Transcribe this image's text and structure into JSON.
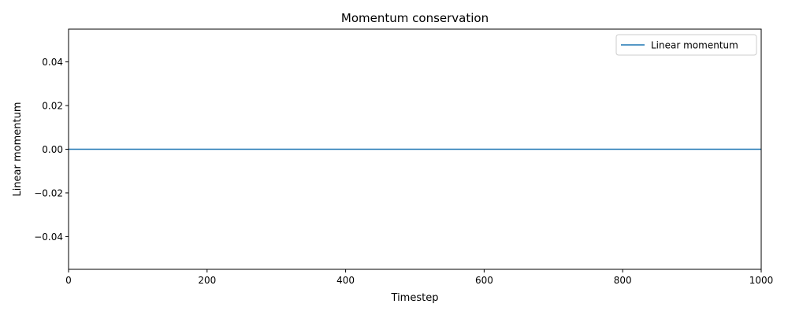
{
  "chart_data": {
    "type": "line",
    "title": "Momentum conservation",
    "xlabel": "Timestep",
    "ylabel": "Linear momentum",
    "xlim": [
      0,
      1000
    ],
    "ylim": [
      -0.055,
      0.055
    ],
    "x_ticks": [
      0,
      200,
      400,
      600,
      800,
      1000
    ],
    "y_ticks": [
      -0.04,
      -0.02,
      0.0,
      0.02,
      0.04
    ],
    "x_tick_labels": [
      "0",
      "200",
      "400",
      "600",
      "800",
      "1000"
    ],
    "y_tick_labels": [
      "−0.04",
      "−0.02",
      "0.00",
      "0.02",
      "0.04"
    ],
    "grid": false,
    "legend_position": "top-right",
    "series": [
      {
        "name": "Linear momentum",
        "color": "#1f77b4",
        "x": [
          0,
          1000
        ],
        "y": [
          0.0,
          0.0
        ]
      }
    ]
  }
}
